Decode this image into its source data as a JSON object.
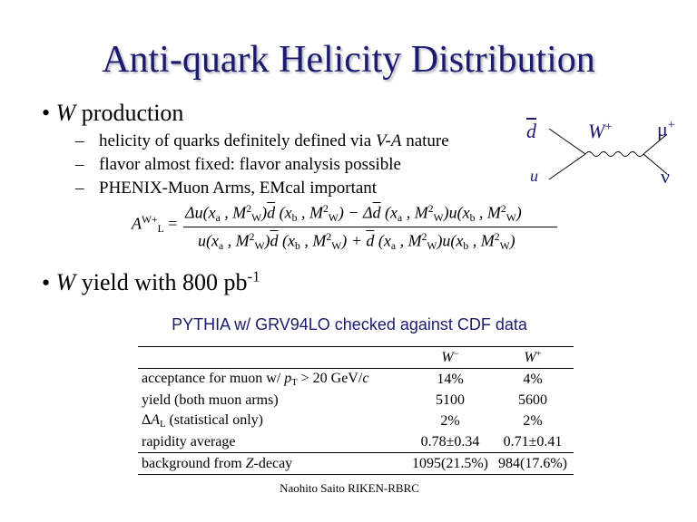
{
  "title": "Anti-quark Helicity Distribution",
  "bullet1": [
    {
      "t": "W",
      "i": true
    },
    {
      "t": " production"
    }
  ],
  "subbullets": [
    [
      {
        "t": "helicity of quarks definitely defined via "
      },
      {
        "t": "V-A",
        "i": true
      },
      {
        "t": " nature"
      }
    ],
    [
      {
        "t": "flavor almost fixed: flavor analysis possible"
      }
    ],
    [
      {
        "t": "PHENIX-Muon Arms, EMcal important"
      }
    ]
  ],
  "diagram": {
    "dbar": [
      {
        "t": "d",
        "s": "bar",
        "i": true
      }
    ],
    "u": [
      {
        "t": "u",
        "i": true
      }
    ],
    "w": [
      {
        "t": "W",
        "i": true
      },
      {
        "t": "+",
        "s": "sup"
      }
    ],
    "mu": [
      {
        "t": "μ"
      },
      {
        "t": "+",
        "s": "sup"
      }
    ],
    "nu": [
      {
        "t": "ν"
      }
    ]
  },
  "formula": {
    "lhs": [
      {
        "t": "A",
        "i": true
      },
      {
        "t": "W+",
        "s": "sup"
      },
      {
        "t": "L",
        "s": "sub"
      },
      {
        "t": " ="
      }
    ],
    "numerator": [
      {
        "t": "Δu",
        "i": true
      },
      {
        "t": "(x",
        "i": true
      },
      {
        "t": "a",
        "s": "sub"
      },
      {
        "t": " , M",
        "i": true
      },
      {
        "t": "2",
        "s": "sup"
      },
      {
        "t": "W",
        "s": "sub"
      },
      {
        "t": ")",
        "i": true
      },
      {
        "t": "d",
        "s": "bar",
        "i": true
      },
      {
        "t": " (x",
        "i": true
      },
      {
        "t": "b",
        "s": "sub"
      },
      {
        "t": " , M",
        "i": true
      },
      {
        "t": "2",
        "s": "sup"
      },
      {
        "t": "W",
        "s": "sub"
      },
      {
        "t": ") − Δ",
        "i": true
      },
      {
        "t": "d",
        "s": "bar",
        "i": true
      },
      {
        "t": " (x",
        "i": true
      },
      {
        "t": "a",
        "s": "sub"
      },
      {
        "t": " , M",
        "i": true
      },
      {
        "t": "2",
        "s": "sup"
      },
      {
        "t": "W",
        "s": "sub"
      },
      {
        "t": ")u(x",
        "i": true
      },
      {
        "t": "b",
        "s": "sub"
      },
      {
        "t": " , M",
        "i": true
      },
      {
        "t": "2",
        "s": "sup"
      },
      {
        "t": "W",
        "s": "sub"
      },
      {
        "t": ")",
        "i": true
      }
    ],
    "denominator": [
      {
        "t": "u(x",
        "i": true
      },
      {
        "t": "a",
        "s": "sub"
      },
      {
        "t": " , M",
        "i": true
      },
      {
        "t": "2",
        "s": "sup"
      },
      {
        "t": "W",
        "s": "sub"
      },
      {
        "t": ")",
        "i": true
      },
      {
        "t": "d",
        "s": "bar",
        "i": true
      },
      {
        "t": " (x",
        "i": true
      },
      {
        "t": "b",
        "s": "sub"
      },
      {
        "t": " , M",
        "i": true
      },
      {
        "t": "2",
        "s": "sup"
      },
      {
        "t": "W",
        "s": "sub"
      },
      {
        "t": ") + ",
        "i": true
      },
      {
        "t": "d",
        "s": "bar",
        "i": true
      },
      {
        "t": " (x",
        "i": true
      },
      {
        "t": "a",
        "s": "sub"
      },
      {
        "t": " , M",
        "i": true
      },
      {
        "t": "2",
        "s": "sup"
      },
      {
        "t": "W",
        "s": "sub"
      },
      {
        "t": ")u(x",
        "i": true
      },
      {
        "t": "b",
        "s": "sub"
      },
      {
        "t": " , M",
        "i": true
      },
      {
        "t": "2",
        "s": "sup"
      },
      {
        "t": "W",
        "s": "sub"
      },
      {
        "t": ")",
        "i": true
      }
    ]
  },
  "bullet2": [
    {
      "t": "W",
      "i": true
    },
    {
      "t": " yield with 800 pb"
    },
    {
      "t": "-1",
      "s": "sup"
    }
  ],
  "table": {
    "caption": "PYTHIA w/ GRV94LO checked against CDF data",
    "header": [
      [
        {
          "t": "W",
          "i": true
        },
        {
          "t": "−",
          "s": "sup"
        }
      ],
      [
        {
          "t": "W",
          "i": true
        },
        {
          "t": "+",
          "s": "sup"
        }
      ]
    ],
    "rows": [
      [
        [
          {
            "t": "acceptance for muon w/ "
          },
          {
            "t": "p",
            "i": true
          },
          {
            "t": "T",
            "s": "sub"
          },
          {
            "t": " > 20 GeV/"
          },
          {
            "t": "c",
            "i": true
          }
        ],
        [
          {
            "t": "14%"
          }
        ],
        [
          {
            "t": "4%"
          }
        ]
      ],
      [
        [
          {
            "t": "yield (both muon arms)"
          }
        ],
        [
          {
            "t": "5100"
          }
        ],
        [
          {
            "t": "5600"
          }
        ]
      ],
      [
        [
          {
            "t": "Δ"
          },
          {
            "t": "A",
            "i": true
          },
          {
            "t": "L",
            "s": "sub"
          },
          {
            "t": " (statistical only)"
          }
        ],
        [
          {
            "t": "2%"
          }
        ],
        [
          {
            "t": "2%"
          }
        ]
      ],
      [
        [
          {
            "t": "rapidity average"
          }
        ],
        [
          {
            "t": "0.78±0.34"
          }
        ],
        [
          {
            "t": "0.71±0.41"
          }
        ]
      ],
      [
        [
          {
            "t": "background from "
          },
          {
            "t": "Z",
            "i": true
          },
          {
            "t": "-decay"
          }
        ],
        [
          {
            "t": "1095(21.5%)"
          }
        ],
        [
          {
            "t": "984(17.6%)"
          }
        ]
      ]
    ]
  },
  "footer": "Naohito Saito RIKEN-RBRC"
}
